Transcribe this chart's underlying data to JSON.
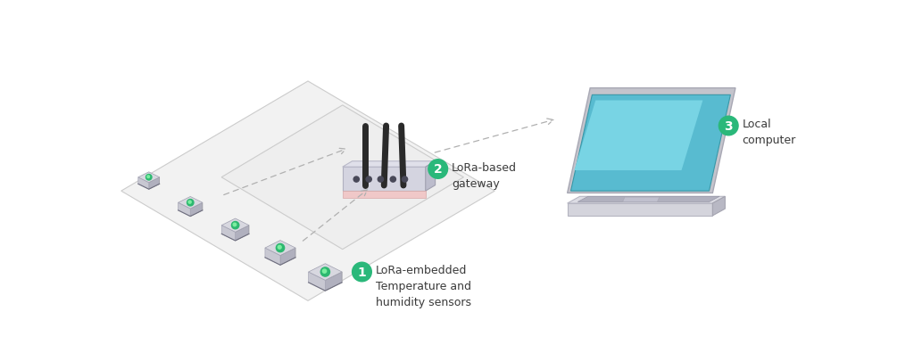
{
  "bg_color": "#ffffff",
  "fig_width": 10.24,
  "fig_height": 4.05,
  "dpi": 100,
  "label1_text": "LoRa-embedded\nTemperature and\nhumidity sensors",
  "label2_text": "LoRa-based\ngateway",
  "label3_text": "Local\ncomputer",
  "badge_color": "#2ab87a",
  "badge_text_color": "#ffffff",
  "main_text_color": "#3a3a3a",
  "arrow_color": "#b0b0b0",
  "floor_fill": "#f2f2f2",
  "floor_edge": "#cccccc",
  "sensor_top": "#d8d8e0",
  "sensor_side_r": "#b0b0be",
  "sensor_side_l": "#c8c8d2",
  "sensor_base": "#909098",
  "sensor_green": "#2db870",
  "router_top": "#e0e0ea",
  "router_front": "#d4d4e0",
  "router_side": "#bcbccc",
  "router_base": "#f0c8c8",
  "router_antenna": "#2a2a2a",
  "laptop_screen_fill": "#58bbd0",
  "laptop_screen_frame": "#c0c0c8",
  "laptop_base_top": "#d4d4dc",
  "laptop_base_side": "#b8b8c4",
  "laptop_keys": "#b0b0be"
}
